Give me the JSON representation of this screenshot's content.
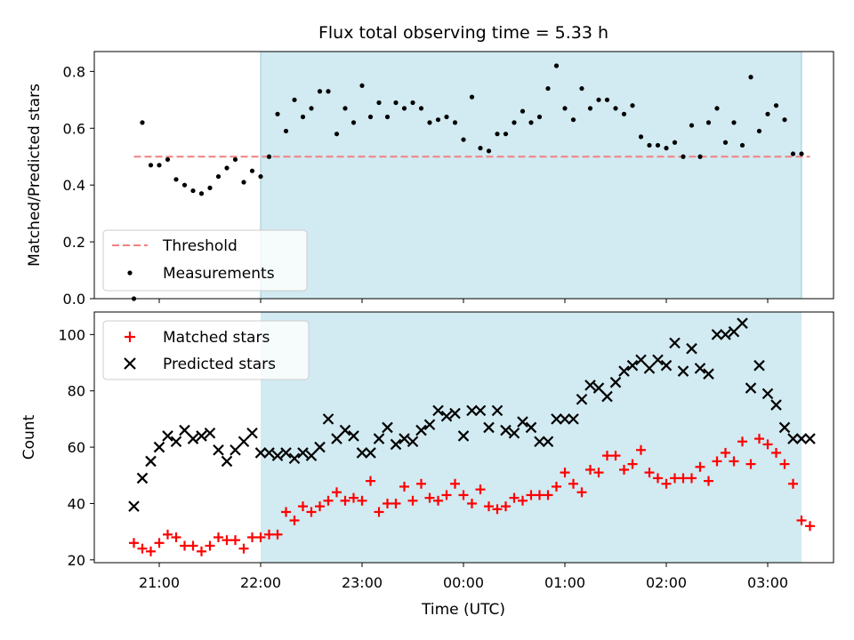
{
  "title": "Flux total observing time = 5.33 h",
  "chart_data": [
    {
      "type": "scatter",
      "ylabel": "Matched/Predicted stars",
      "ylim": [
        0,
        0.87
      ],
      "yticks": [
        "0.0",
        "0.2",
        "0.4",
        "0.6",
        "0.8"
      ],
      "threshold": {
        "name": "Threshold",
        "value": 0.5,
        "x_start": "20:45",
        "x_end": "03:25",
        "color": "#f08080"
      },
      "legend": {
        "placement": "lower-left",
        "entries": [
          "Threshold",
          "Measurements"
        ]
      },
      "shaded_region": {
        "x_start": "22:00",
        "x_end": "03:20",
        "color": "#add8e6"
      },
      "series": [
        {
          "name": "Measurements",
          "color": "#000000",
          "x": [
            "20:45",
            "20:50",
            "20:55",
            "21:00",
            "21:05",
            "21:10",
            "21:15",
            "21:20",
            "21:25",
            "21:30",
            "21:35",
            "21:40",
            "21:45",
            "21:50",
            "21:55",
            "22:00",
            "22:05",
            "22:10",
            "22:15",
            "22:20",
            "22:25",
            "22:30",
            "22:35",
            "22:40",
            "22:45",
            "22:50",
            "22:55",
            "23:00",
            "23:05",
            "23:10",
            "23:15",
            "23:20",
            "23:25",
            "23:30",
            "23:35",
            "23:40",
            "23:45",
            "23:50",
            "23:55",
            "00:00",
            "00:05",
            "00:10",
            "00:15",
            "00:20",
            "00:25",
            "00:30",
            "00:35",
            "00:40",
            "00:45",
            "00:50",
            "00:55",
            "01:00",
            "01:05",
            "01:10",
            "01:15",
            "01:20",
            "01:25",
            "01:30",
            "01:35",
            "01:40",
            "01:45",
            "01:50",
            "01:55",
            "02:00",
            "02:05",
            "02:10",
            "02:15",
            "02:20",
            "02:25",
            "02:30",
            "02:35",
            "02:40",
            "02:45",
            "02:50",
            "02:55",
            "03:00",
            "03:05",
            "03:10",
            "03:15",
            "03:20"
          ],
          "values": [
            0.0,
            0.62,
            0.47,
            0.47,
            0.49,
            0.42,
            0.4,
            0.38,
            0.37,
            0.39,
            0.43,
            0.46,
            0.49,
            0.41,
            0.45,
            0.43,
            0.5,
            0.65,
            0.59,
            0.7,
            0.64,
            0.67,
            0.73,
            0.73,
            0.58,
            0.67,
            0.62,
            0.75,
            0.64,
            0.69,
            0.64,
            0.69,
            0.67,
            0.69,
            0.67,
            0.62,
            0.63,
            0.64,
            0.62,
            0.56,
            0.71,
            0.53,
            0.52,
            0.58,
            0.58,
            0.62,
            0.66,
            0.62,
            0.64,
            0.74,
            0.82,
            0.67,
            0.63,
            0.74,
            0.67,
            0.7,
            0.7,
            0.67,
            0.65,
            0.68,
            0.57,
            0.54,
            0.54,
            0.53,
            0.55,
            0.5,
            0.61,
            0.5,
            0.62,
            0.67,
            0.55,
            0.62,
            0.54,
            0.78,
            0.59,
            0.65,
            0.68,
            0.63,
            0.51,
            0.51
          ]
        }
      ]
    },
    {
      "type": "scatter",
      "xlabel": "Time (UTC)",
      "ylabel": "Count",
      "ylim": [
        19,
        108
      ],
      "yticks": [
        "20",
        "40",
        "60",
        "80",
        "100"
      ],
      "xticks": [
        "21:00",
        "22:00",
        "23:00",
        "00:00",
        "01:00",
        "02:00",
        "03:00"
      ],
      "legend": {
        "placement": "top-left",
        "entries": [
          "Matched stars",
          "Predicted stars"
        ]
      },
      "shaded_region": {
        "x_start": "22:00",
        "x_end": "03:20",
        "color": "#add8e6"
      },
      "series": [
        {
          "name": "Matched stars",
          "marker": "+",
          "color": "#ff0000",
          "x": [
            "20:45",
            "20:50",
            "20:55",
            "21:00",
            "21:05",
            "21:10",
            "21:15",
            "21:20",
            "21:25",
            "21:30",
            "21:35",
            "21:40",
            "21:45",
            "21:50",
            "21:55",
            "22:00",
            "22:05",
            "22:10",
            "22:15",
            "22:20",
            "22:25",
            "22:30",
            "22:35",
            "22:40",
            "22:45",
            "22:50",
            "22:55",
            "23:00",
            "23:05",
            "23:10",
            "23:15",
            "23:20",
            "23:25",
            "23:30",
            "23:35",
            "23:40",
            "23:45",
            "23:50",
            "23:55",
            "00:00",
            "00:05",
            "00:10",
            "00:15",
            "00:20",
            "00:25",
            "00:30",
            "00:35",
            "00:40",
            "00:45",
            "00:50",
            "00:55",
            "01:00",
            "01:05",
            "01:10",
            "01:15",
            "01:20",
            "01:25",
            "01:30",
            "01:35",
            "01:40",
            "01:45",
            "01:50",
            "01:55",
            "02:00",
            "02:05",
            "02:10",
            "02:15",
            "02:20",
            "02:25",
            "02:30",
            "02:35",
            "02:40",
            "02:45",
            "02:50",
            "02:55",
            "03:00",
            "03:05",
            "03:10",
            "03:15",
            "03:20",
            "03:25"
          ],
          "values": [
            26,
            24,
            23,
            26,
            29,
            28,
            25,
            25,
            23,
            25,
            28,
            27,
            27,
            24,
            28,
            28,
            29,
            29,
            37,
            34,
            39,
            37,
            39,
            41,
            44,
            41,
            42,
            41,
            48,
            37,
            40,
            40,
            46,
            41,
            47,
            42,
            41,
            43,
            47,
            43,
            40,
            45,
            39,
            38,
            39,
            42,
            41,
            43,
            43,
            43,
            46,
            51,
            47,
            44,
            52,
            51,
            57,
            57,
            52,
            54,
            59,
            51,
            49,
            47,
            49,
            49,
            49,
            53,
            48,
            55,
            58,
            55,
            62,
            54,
            63,
            61,
            58,
            54,
            47,
            34,
            32
          ]
        },
        {
          "name": "Predicted stars",
          "marker": "x",
          "color": "#000000",
          "x": [
            "20:45",
            "20:50",
            "20:55",
            "21:00",
            "21:05",
            "21:10",
            "21:15",
            "21:20",
            "21:25",
            "21:30",
            "21:35",
            "21:40",
            "21:45",
            "21:50",
            "21:55",
            "22:00",
            "22:05",
            "22:10",
            "22:15",
            "22:20",
            "22:25",
            "22:30",
            "22:35",
            "22:40",
            "22:45",
            "22:50",
            "22:55",
            "23:00",
            "23:05",
            "23:10",
            "23:15",
            "23:20",
            "23:25",
            "23:30",
            "23:35",
            "23:40",
            "23:45",
            "23:50",
            "23:55",
            "00:00",
            "00:05",
            "00:10",
            "00:15",
            "00:20",
            "00:25",
            "00:30",
            "00:35",
            "00:40",
            "00:45",
            "00:50",
            "00:55",
            "01:00",
            "01:05",
            "01:10",
            "01:15",
            "01:20",
            "01:25",
            "01:30",
            "01:35",
            "01:40",
            "01:45",
            "01:50",
            "01:55",
            "02:00",
            "02:05",
            "02:10",
            "02:15",
            "02:20",
            "02:25",
            "02:30",
            "02:35",
            "02:40",
            "02:45",
            "02:50",
            "02:55",
            "03:00",
            "03:05",
            "03:10",
            "03:15",
            "03:20",
            "03:25"
          ],
          "values": [
            39,
            49,
            55,
            60,
            64,
            62,
            66,
            63,
            64,
            65,
            59,
            55,
            59,
            62,
            65,
            58,
            58,
            57,
            58,
            56,
            58,
            57,
            60,
            70,
            63,
            66,
            64,
            58,
            58,
            63,
            67,
            61,
            63,
            62,
            66,
            68,
            73,
            71,
            72,
            64,
            73,
            73,
            67,
            73,
            66,
            65,
            69,
            67,
            62,
            62,
            70,
            70,
            70,
            77,
            82,
            81,
            78,
            83,
            87,
            89,
            91,
            88,
            91,
            89,
            97,
            87,
            95,
            88,
            86,
            100,
            100,
            101,
            104,
            81,
            89,
            79,
            75,
            67,
            63,
            63,
            63
          ]
        }
      ]
    }
  ]
}
